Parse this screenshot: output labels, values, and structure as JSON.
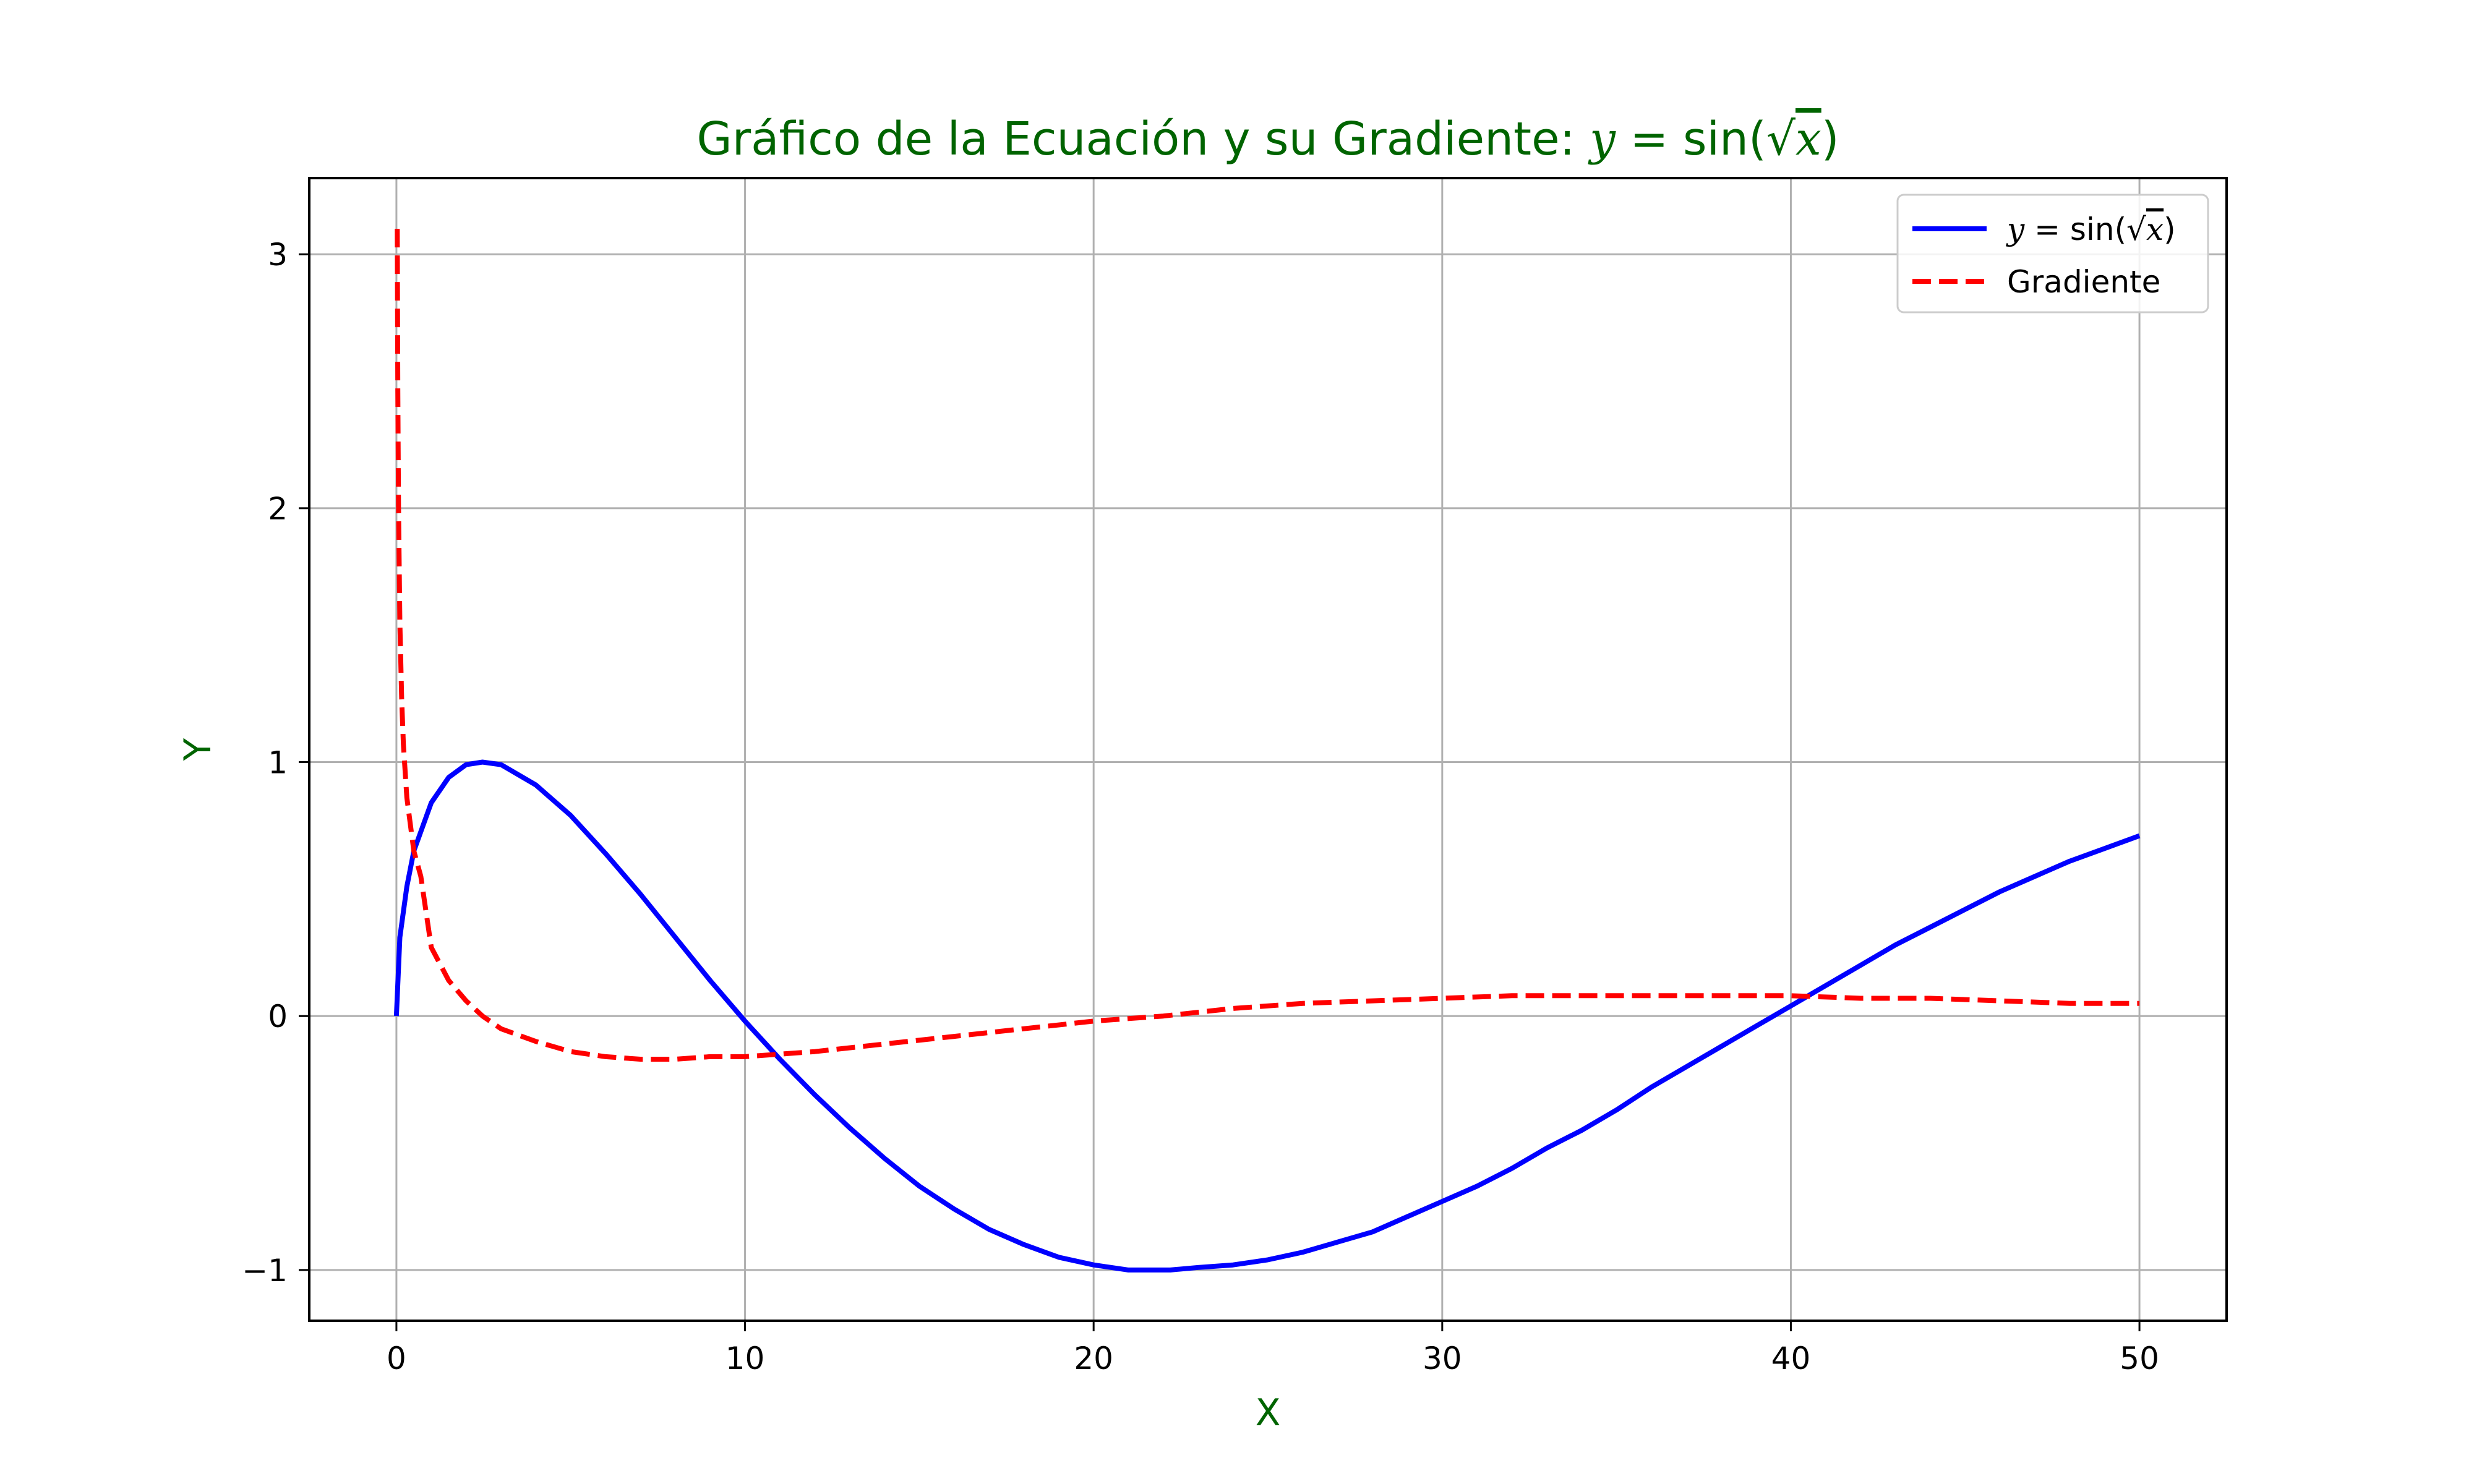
{
  "chart_data": {
    "type": "line",
    "title": {
      "prefix": "Gráfico de la Ecuación y su Gradiente: ",
      "eq_y": "y",
      "eq_equals": " = ",
      "eq_func": "sin(",
      "eq_sqrt": "√",
      "eq_x": "x",
      "eq_close": ")"
    },
    "xlabel": "X",
    "ylabel": "Y",
    "label_color": "#006400",
    "xlim": [
      -2.5,
      52.5
    ],
    "ylim": [
      -1.2,
      3.3
    ],
    "xticks": [
      0,
      10,
      20,
      30,
      40,
      50
    ],
    "xtick_labels": [
      "0",
      "10",
      "20",
      "30",
      "40",
      "50"
    ],
    "yticks": [
      -1,
      0,
      1,
      2,
      3
    ],
    "ytick_labels": [
      "−1",
      "0",
      "1",
      "2",
      "3"
    ],
    "grid": true,
    "legend_position": "top-right",
    "series": [
      {
        "name_parts": {
          "y": "y",
          "eq": " = sin(",
          "sqrt": "√",
          "x": "x",
          "close": ")"
        },
        "color": "#0000ff",
        "style": "solid",
        "x": [
          0,
          0.1,
          0.3,
          0.5,
          1,
          1.5,
          2,
          2.47,
          3,
          4,
          5,
          6,
          7,
          8,
          9,
          10,
          11,
          12,
          13,
          14,
          15,
          16,
          17,
          18,
          19,
          20,
          21,
          22.2,
          23,
          24,
          25,
          26,
          27,
          28,
          29,
          30,
          31,
          32,
          33,
          34,
          35,
          36,
          37,
          38,
          39,
          40,
          41,
          42,
          43,
          44,
          45,
          46,
          47,
          48,
          49,
          50
        ],
        "y": [
          0,
          0.31,
          0.51,
          0.65,
          0.84,
          0.94,
          0.99,
          1.0,
          0.99,
          0.91,
          0.79,
          0.64,
          0.48,
          0.31,
          0.14,
          -0.02,
          -0.17,
          -0.31,
          -0.44,
          -0.56,
          -0.67,
          -0.76,
          -0.84,
          -0.9,
          -0.95,
          -0.98,
          -1.0,
          -1.0,
          -0.99,
          -0.98,
          -0.96,
          -0.93,
          -0.89,
          -0.85,
          -0.79,
          -0.73,
          -0.67,
          -0.6,
          -0.52,
          -0.45,
          -0.37,
          -0.28,
          -0.2,
          -0.12,
          -0.04,
          0.04,
          0.12,
          0.2,
          0.28,
          0.35,
          0.42,
          0.49,
          0.55,
          0.61,
          0.66,
          0.71
        ]
      },
      {
        "name": "Gradiente",
        "color": "#ff0000",
        "style": "dashed",
        "x": [
          0.025,
          0.04,
          0.06,
          0.1,
          0.15,
          0.2,
          0.3,
          0.5,
          0.7,
          1,
          1.5,
          2,
          2.47,
          3,
          4,
          5,
          6,
          7,
          7.5,
          8,
          9,
          10,
          11,
          12,
          14,
          16,
          18,
          20,
          22,
          24,
          26,
          28,
          30,
          32,
          34,
          36,
          38,
          40,
          42,
          44,
          46,
          48,
          50
        ],
        "y": [
          3.1,
          2.46,
          2.01,
          1.55,
          1.25,
          1.07,
          0.86,
          0.65,
          0.55,
          0.27,
          0.14,
          0.06,
          0.0,
          -0.05,
          -0.1,
          -0.14,
          -0.16,
          -0.17,
          -0.17,
          -0.17,
          -0.16,
          -0.16,
          -0.15,
          -0.14,
          -0.11,
          -0.08,
          -0.05,
          -0.02,
          0.0,
          0.03,
          0.05,
          0.06,
          0.07,
          0.08,
          0.08,
          0.08,
          0.08,
          0.08,
          0.07,
          0.07,
          0.06,
          0.05,
          0.05
        ]
      }
    ]
  }
}
